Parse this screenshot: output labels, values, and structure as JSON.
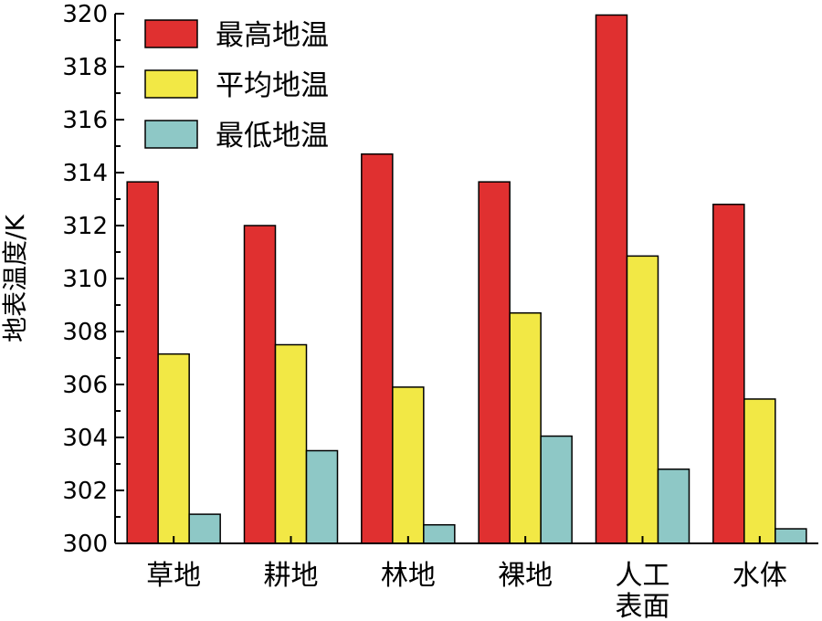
{
  "chart_data": {
    "type": "bar",
    "title": "",
    "xlabel": "",
    "ylabel": "地表温度/K",
    "ylim": [
      300,
      320
    ],
    "yticks": [
      300,
      302,
      304,
      306,
      308,
      310,
      312,
      314,
      316,
      318,
      320
    ],
    "categories": [
      [
        "草地"
      ],
      [
        "耕地"
      ],
      [
        "林地"
      ],
      [
        "裸地"
      ],
      [
        "人工",
        "表面"
      ],
      [
        "水体"
      ]
    ],
    "series": [
      {
        "name": "最高地温",
        "color": "#e03030",
        "values": [
          313.65,
          312.0,
          314.7,
          313.65,
          319.95,
          312.8
        ]
      },
      {
        "name": "平均地温",
        "color": "#f2e845",
        "values": [
          307.15,
          307.5,
          305.9,
          308.7,
          310.85,
          305.45
        ]
      },
      {
        "name": "最低地温",
        "color": "#8ec8c6",
        "values": [
          301.1,
          303.5,
          300.7,
          304.05,
          302.8,
          300.55
        ]
      }
    ],
    "legend_position": "top-left",
    "grid": false
  }
}
